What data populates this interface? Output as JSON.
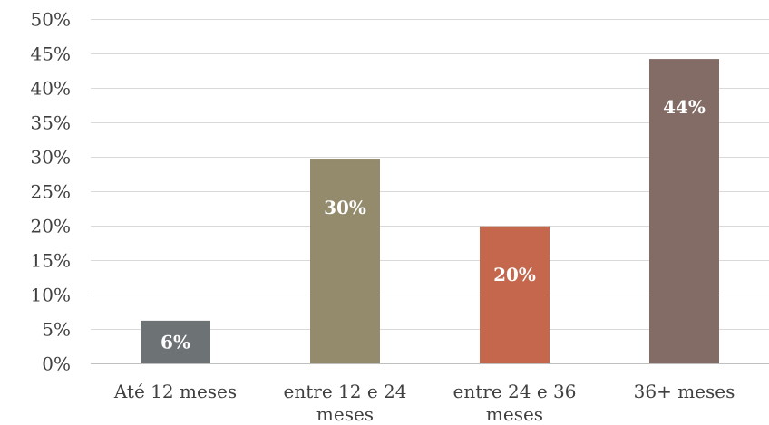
{
  "chart_data": {
    "type": "bar",
    "categories": [
      [
        "Até 12 meses"
      ],
      [
        "entre 12 e 24",
        "meses"
      ],
      [
        "entre 24 e 36",
        "meses"
      ],
      [
        "36+ meses"
      ]
    ],
    "values": [
      6.2,
      29.6,
      19.9,
      44.2
    ],
    "data_labels": [
      "6%",
      "30%",
      "20%",
      "44%"
    ],
    "colors": [
      "#6d7275",
      "#938b6c",
      "#c4674d",
      "#846c66"
    ],
    "ylim": [
      0,
      50
    ],
    "yticks": [
      0,
      5,
      10,
      15,
      20,
      25,
      30,
      35,
      40,
      45,
      50
    ],
    "ytick_labels": [
      "0%",
      "5%",
      "10%",
      "15%",
      "20%",
      "25%",
      "30%",
      "35%",
      "40%",
      "45%",
      "50%"
    ],
    "grid": true,
    "legend": "none"
  }
}
